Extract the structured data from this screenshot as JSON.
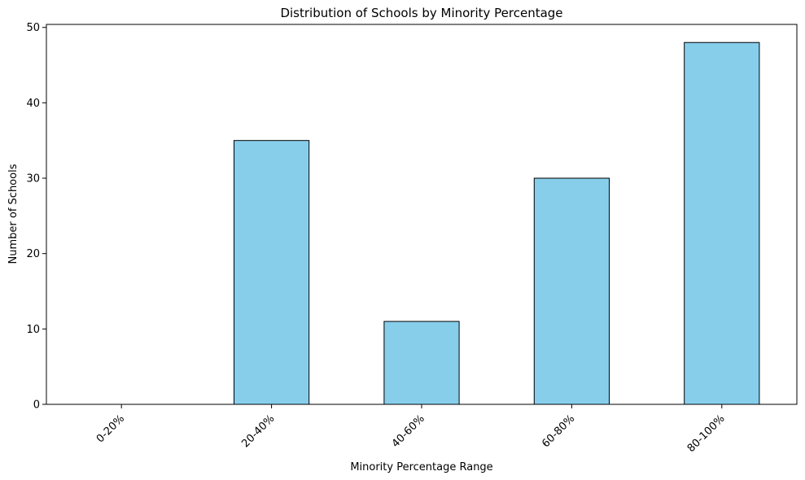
{
  "chart_data": {
    "type": "bar",
    "title": "Distribution of Schools by Minority Percentage",
    "xlabel": "Minority Percentage Range",
    "ylabel": "Number of Schools",
    "categories": [
      "0-20%",
      "20-40%",
      "40-60%",
      "60-80%",
      "80-100%"
    ],
    "values": [
      0,
      35,
      11,
      30,
      48
    ],
    "ylim": [
      0,
      50.4
    ],
    "yticks": [
      0,
      10,
      20,
      30,
      40,
      50
    ],
    "grid": false,
    "legend": "none",
    "colors": {
      "bar_fill": "#87CEEB",
      "bar_edge": "#000000",
      "axis": "#000000"
    }
  }
}
